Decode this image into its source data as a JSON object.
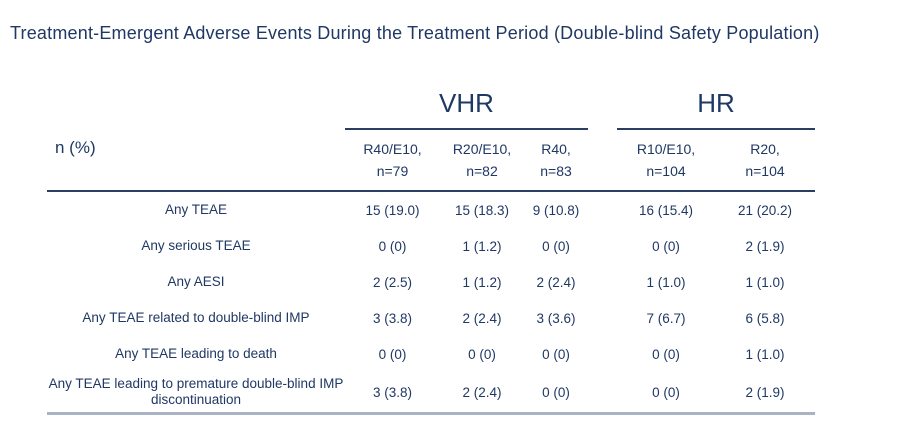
{
  "title": "Treatment-Emergent Adverse Events During the Treatment Period (Double-blind Safety Population)",
  "colors": {
    "text_navy": "#1f3864",
    "rule_dark": "#2b3f63",
    "rule_light": "#a9b3c4"
  },
  "table": {
    "row_header": "n (%)",
    "groups": [
      {
        "label": "VHR"
      },
      {
        "label": "HR"
      }
    ],
    "columns": [
      {
        "arm": "R40/E10,",
        "n": "n=79"
      },
      {
        "arm": "R20/E10,",
        "n": "n=82"
      },
      {
        "arm": "R40,",
        "n": "n=83"
      },
      {
        "arm": "R10/E10,",
        "n": "n=104"
      },
      {
        "arm": "R20,",
        "n": "n=104"
      }
    ],
    "rows": [
      {
        "label": "Any TEAE",
        "values": [
          "15 (19.0)",
          "15 (18.3)",
          "9 (10.8)",
          "16 (15.4)",
          "21 (20.2)"
        ]
      },
      {
        "label": "Any serious TEAE",
        "values": [
          "0 (0)",
          "1 (1.2)",
          "0 (0)",
          "0 (0)",
          "2 (1.9)"
        ]
      },
      {
        "label": "Any AESI",
        "values": [
          "2 (2.5)",
          "1 (1.2)",
          "2 (2.4)",
          "1 (1.0)",
          "1 (1.0)"
        ]
      },
      {
        "label": "Any TEAE related to double-blind IMP",
        "values": [
          "3 (3.8)",
          "2 (2.4)",
          "3 (3.6)",
          "7 (6.7)",
          "6 (5.8)"
        ]
      },
      {
        "label": "Any TEAE leading to death",
        "values": [
          "0 (0)",
          "0 (0)",
          "0 (0)",
          "0 (0)",
          "1 (1.0)"
        ]
      },
      {
        "label": "Any TEAE leading to premature double-blind IMP discontinuation",
        "values": [
          "3 (3.8)",
          "2 (2.4)",
          "0 (0)",
          "0 (0)",
          "2 (1.9)"
        ]
      }
    ]
  }
}
